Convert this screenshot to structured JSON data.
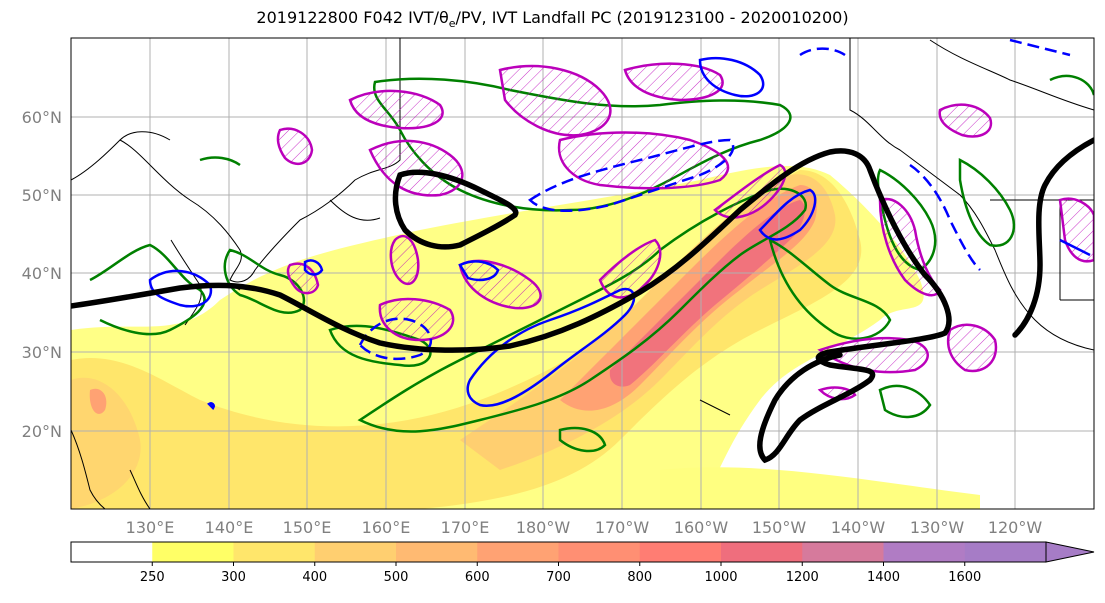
{
  "title": "2019122800 F042 IVT/θe/PV, IVT Landfall PC (2019123100 - 2020010200)",
  "map": {
    "lat_labels": [
      "20°N",
      "30°N",
      "40°N",
      "50°N",
      "60°N"
    ],
    "lon_labels": [
      "130°E",
      "140°E",
      "150°E",
      "160°E",
      "170°E",
      "180°W",
      "170°W",
      "160°W",
      "150°W",
      "140°W",
      "130°W",
      "120°W"
    ],
    "colors": {
      "jet_contour": "#000000",
      "theta_e": "#008000",
      "pv_magenta": "#bb00bb",
      "pv_blue": "#0000ff",
      "land_outline": "#000000"
    }
  },
  "colorbar": {
    "labels": [
      "250",
      "300",
      "400",
      "500",
      "600",
      "700",
      "800",
      "1000",
      "1200",
      "1400",
      "1600"
    ],
    "colors": [
      "#ffffff",
      "#ffff66",
      "#ffe66b",
      "#ffcf70",
      "#ffba72",
      "#ffa273",
      "#ff8f73",
      "#ff7d73",
      "#ef6e7d",
      "#d67a9c",
      "#b07cc4",
      "#a67cc6"
    ]
  }
}
